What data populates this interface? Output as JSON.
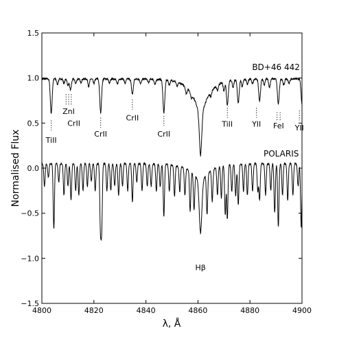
{
  "chart_data": {
    "type": "line",
    "xlabel": "λ, Å",
    "ylabel": "Normalised Flux",
    "xlim": [
      4800,
      4900
    ],
    "ylim": [
      -1.5,
      1.5
    ],
    "xticks": [
      "4800",
      "4820",
      "4840",
      "4860",
      "4880",
      "4900"
    ],
    "yticks": [
      "1.5",
      "1.0",
      "0.5",
      "0.0",
      "−0.5",
      "−1.0",
      "−1.5"
    ],
    "grid": false,
    "series": [
      {
        "name": "BD+46 442",
        "offset": 0,
        "continuum": 0.99,
        "lines": [
          [
            4803.6,
            0.38,
            0.35
          ],
          [
            4806.0,
            0.06,
            0.3
          ],
          [
            4808.5,
            0.05,
            0.3
          ],
          [
            4810.0,
            0.07,
            0.3
          ],
          [
            4811.0,
            0.12,
            0.35
          ],
          [
            4813.0,
            0.05,
            0.3
          ],
          [
            4815.0,
            0.04,
            0.3
          ],
          [
            4818.0,
            0.08,
            0.3
          ],
          [
            4820.0,
            0.05,
            0.3
          ],
          [
            4822.6,
            0.37,
            0.35
          ],
          [
            4826.0,
            0.05,
            0.3
          ],
          [
            4829.0,
            0.06,
            0.3
          ],
          [
            4832.0,
            0.05,
            0.3
          ],
          [
            4834.8,
            0.17,
            0.35
          ],
          [
            4838.0,
            0.05,
            0.3
          ],
          [
            4841.0,
            0.04,
            0.3
          ],
          [
            4843.5,
            0.06,
            0.3
          ],
          [
            4846.9,
            0.37,
            0.35
          ],
          [
            4849.0,
            0.05,
            0.3
          ],
          [
            4852.0,
            0.05,
            0.3
          ],
          [
            4855.5,
            0.07,
            0.3
          ],
          [
            4857.5,
            0.05,
            0.3
          ],
          [
            4865.0,
            0.05,
            0.3
          ],
          [
            4867.5,
            0.06,
            0.3
          ],
          [
            4870.0,
            0.1,
            0.3
          ],
          [
            4871.3,
            0.27,
            0.35
          ],
          [
            4873.5,
            0.08,
            0.3
          ],
          [
            4875.5,
            0.26,
            0.35
          ],
          [
            4877.0,
            0.08,
            0.3
          ],
          [
            4879.0,
            0.06,
            0.3
          ],
          [
            4881.0,
            0.05,
            0.3
          ],
          [
            4883.7,
            0.24,
            0.35
          ],
          [
            4885.5,
            0.07,
            0.3
          ],
          [
            4887.5,
            0.09,
            0.3
          ],
          [
            4890.9,
            0.28,
            0.35
          ],
          [
            4893.0,
            0.07,
            0.3
          ],
          [
            4895.0,
            0.05,
            0.3
          ],
          [
            4900.0,
            0.28,
            0.35
          ]
        ],
        "balmer": {
          "center": 4861.0,
          "broad_depth": 0.45,
          "broad_width": 3.5,
          "core_depth": 0.4,
          "core_width": 0.45
        }
      },
      {
        "name": "POLARIS",
        "offset": -1.0,
        "continuum": 1.05,
        "lines": [
          [
            4801.0,
            0.25,
            0.25
          ],
          [
            4802.5,
            0.15,
            0.25
          ],
          [
            4804.6,
            0.72,
            0.25
          ],
          [
            4806.5,
            0.2,
            0.25
          ],
          [
            4808.5,
            0.35,
            0.25
          ],
          [
            4810.0,
            0.25,
            0.25
          ],
          [
            4811.2,
            0.4,
            0.25
          ],
          [
            4813.0,
            0.3,
            0.25
          ],
          [
            4814.2,
            0.35,
            0.25
          ],
          [
            4815.8,
            0.3,
            0.25
          ],
          [
            4817.5,
            0.25,
            0.25
          ],
          [
            4819.0,
            0.2,
            0.25
          ],
          [
            4820.5,
            0.3,
            0.25
          ],
          [
            4822.5,
            0.68,
            0.25
          ],
          [
            4823.0,
            0.7,
            0.25
          ],
          [
            4825.0,
            0.3,
            0.25
          ],
          [
            4826.5,
            0.3,
            0.25
          ],
          [
            4828.0,
            0.25,
            0.25
          ],
          [
            4829.5,
            0.35,
            0.25
          ],
          [
            4831.0,
            0.25,
            0.25
          ],
          [
            4833.0,
            0.3,
            0.25
          ],
          [
            4834.8,
            0.42,
            0.25
          ],
          [
            4836.5,
            0.2,
            0.25
          ],
          [
            4838.5,
            0.3,
            0.25
          ],
          [
            4840.5,
            0.25,
            0.25
          ],
          [
            4842.0,
            0.25,
            0.25
          ],
          [
            4844.0,
            0.3,
            0.25
          ],
          [
            4845.5,
            0.25,
            0.25
          ],
          [
            4846.9,
            0.58,
            0.25
          ],
          [
            4849.0,
            0.3,
            0.25
          ],
          [
            4851.0,
            0.35,
            0.25
          ],
          [
            4853.0,
            0.28,
            0.25
          ],
          [
            4855.0,
            0.3,
            0.25
          ],
          [
            4857.0,
            0.45,
            0.25
          ],
          [
            4858.5,
            0.4,
            0.25
          ],
          [
            4863.5,
            0.45,
            0.25
          ],
          [
            4865.5,
            0.35,
            0.25
          ],
          [
            4867.5,
            0.3,
            0.25
          ],
          [
            4869.0,
            0.35,
            0.25
          ],
          [
            4870.5,
            0.55,
            0.25
          ],
          [
            4871.3,
            0.6,
            0.25
          ],
          [
            4873.0,
            0.3,
            0.25
          ],
          [
            4874.5,
            0.35,
            0.25
          ],
          [
            4875.5,
            0.45,
            0.25
          ],
          [
            4877.5,
            0.3,
            0.25
          ],
          [
            4879.0,
            0.35,
            0.25
          ],
          [
            4881.0,
            0.3,
            0.25
          ],
          [
            4883.0,
            0.3,
            0.25
          ],
          [
            4883.7,
            0.4,
            0.25
          ],
          [
            4886.0,
            0.35,
            0.25
          ],
          [
            4888.0,
            0.3,
            0.25
          ],
          [
            4889.5,
            0.55,
            0.25
          ],
          [
            4890.9,
            0.7,
            0.25
          ],
          [
            4892.5,
            0.35,
            0.25
          ],
          [
            4894.5,
            0.4,
            0.25
          ],
          [
            4896.5,
            0.35,
            0.25
          ],
          [
            4898.5,
            0.25,
            0.25
          ],
          [
            4899.7,
            0.7,
            0.25
          ]
        ],
        "balmer": {
          "center": 4861.0,
          "broad_depth": 0.22,
          "broad_width": 4.0,
          "core_depth": 0.55,
          "core_width": 0.5
        }
      }
    ],
    "star_labels": [
      {
        "text": "BD+46 442",
        "x": 4890,
        "y": 1.09
      },
      {
        "text": "POLARIS",
        "x": 4892,
        "y": 0.13
      }
    ],
    "annotations": [
      {
        "text": "TiII",
        "x": 4803.6,
        "y": 0.28,
        "dots_top": 0.53,
        "dots_bottom": 0.42,
        "xs": [
          4803.6
        ]
      },
      {
        "text": "ZnI",
        "x": 4810.3,
        "y": 0.6,
        "dots_top": 0.82,
        "dots_bottom": 0.69,
        "xs": [
          4809.3,
          4810.3,
          4811.3
        ]
      },
      {
        "text": "CrII",
        "x": 4812.3,
        "y": 0.47,
        "dots_top": 0.82,
        "dots_bottom": 0.69,
        "xs": []
      },
      {
        "text": "CrII",
        "x": 4822.6,
        "y": 0.35,
        "dots_top": 0.56,
        "dots_bottom": 0.45,
        "xs": [
          4822.6
        ]
      },
      {
        "text": "CrII",
        "x": 4834.8,
        "y": 0.53,
        "dots_top": 0.76,
        "dots_bottom": 0.65,
        "xs": [
          4834.8
        ]
      },
      {
        "text": "CrII",
        "x": 4846.9,
        "y": 0.35,
        "dots_top": 0.58,
        "dots_bottom": 0.47,
        "xs": [
          4846.9
        ]
      },
      {
        "text": "TiII",
        "x": 4871.3,
        "y": 0.46,
        "dots_top": 0.67,
        "dots_bottom": 0.56,
        "xs": [
          4871.3
        ]
      },
      {
        "text": "YII",
        "x": 4882.5,
        "y": 0.46,
        "dots_top": 0.67,
        "dots_bottom": 0.56,
        "xs": [
          4882.5
        ]
      },
      {
        "text": "FeI",
        "x": 4891.0,
        "y": 0.44,
        "dots_top": 0.62,
        "dots_bottom": 0.52,
        "xs": [
          4890.4,
          4891.6
        ]
      },
      {
        "text": "YII",
        "x": 4899.0,
        "y": 0.42,
        "dots_top": 0.64,
        "dots_bottom": 0.53,
        "xs": [
          4899.0
        ]
      },
      {
        "text": "Hβ",
        "x": 4861.0,
        "y": -1.13,
        "dots_top": null,
        "dots_bottom": null,
        "xs": []
      }
    ]
  }
}
